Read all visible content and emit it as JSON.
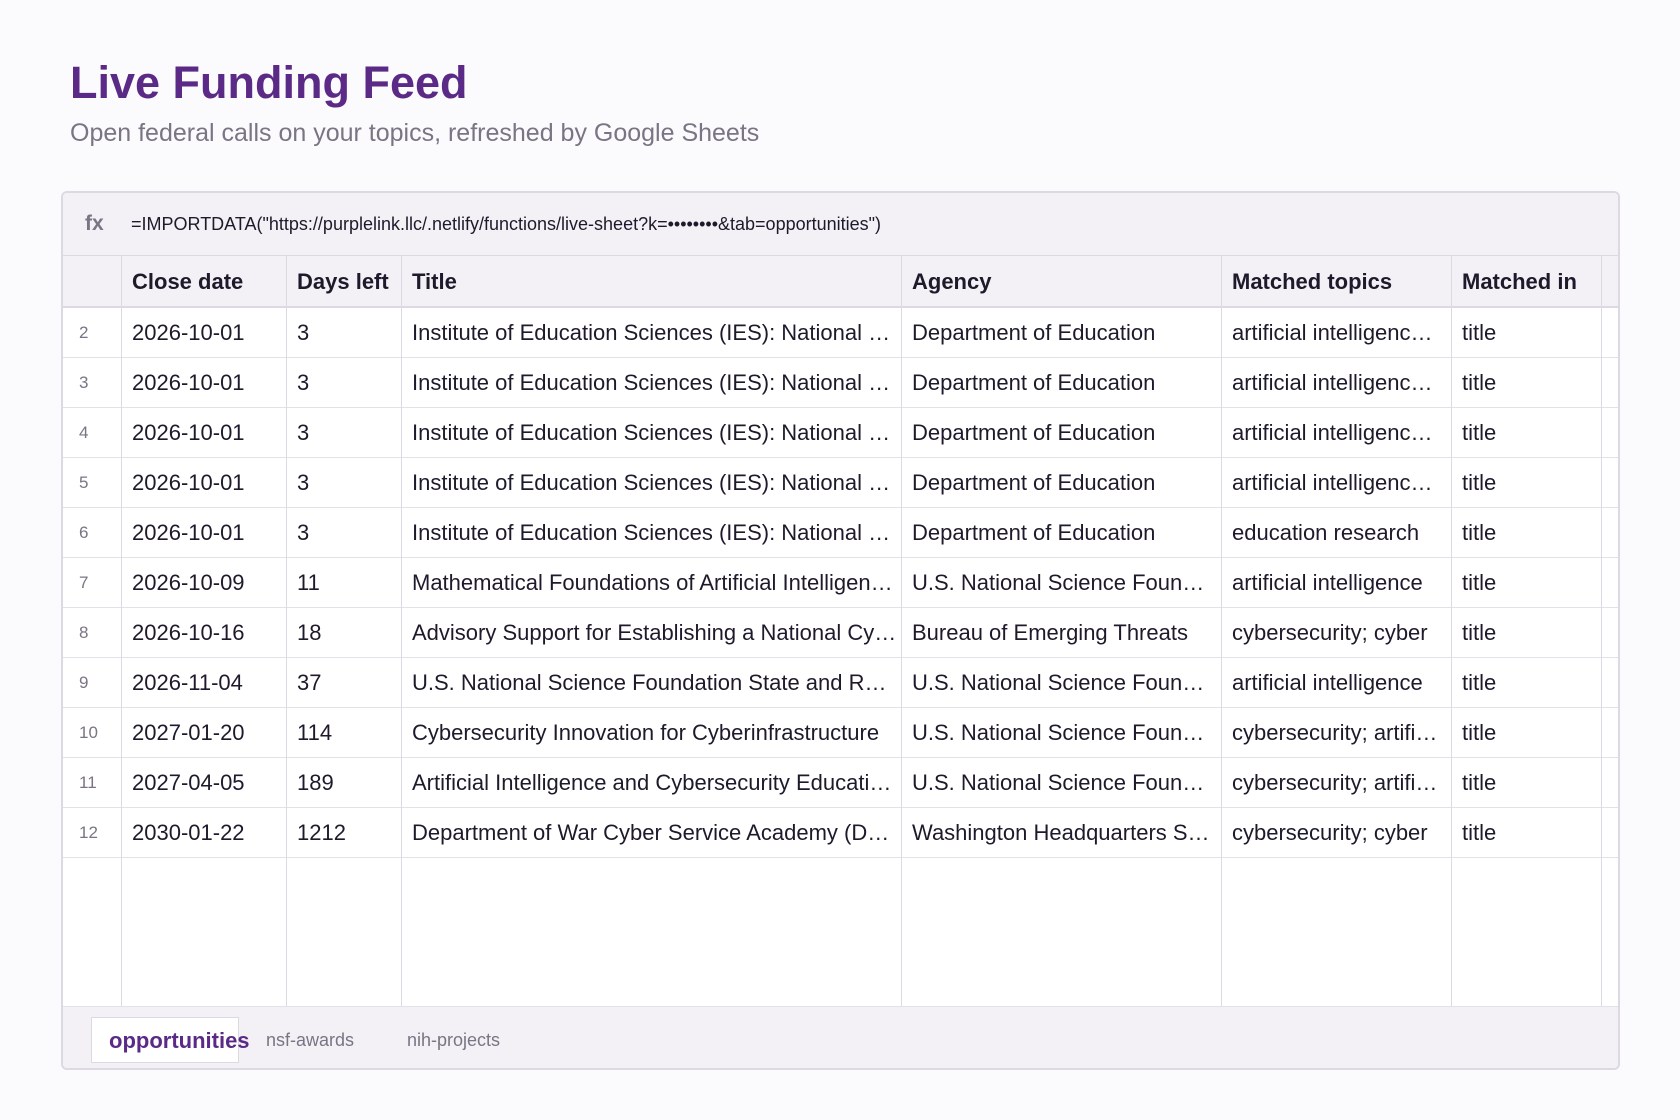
{
  "header": {
    "title": "Live Funding Feed",
    "subtitle": "Open federal calls on your topics, refreshed by Google Sheets"
  },
  "formula_bar": {
    "fx_label": "fx",
    "formula": "=IMPORTDATA(\"https://purplelink.llc/.netlify/functions/live-sheet?k=••••••••&tab=opportunities\")"
  },
  "table": {
    "columns": [
      "Close date",
      "Days left",
      "Title",
      "Agency",
      "Matched topics",
      "Matched in"
    ],
    "rows": [
      {
        "num": "2",
        "close_date": "2026-10-01",
        "days_left": "3",
        "title": "Institute of Education Sciences (IES): National …",
        "agency": "Department of Education",
        "topics": "artificial intelligenc…",
        "matched_in": "title"
      },
      {
        "num": "3",
        "close_date": "2026-10-01",
        "days_left": "3",
        "title": "Institute of Education Sciences (IES): National …",
        "agency": "Department of Education",
        "topics": "artificial intelligenc…",
        "matched_in": "title"
      },
      {
        "num": "4",
        "close_date": "2026-10-01",
        "days_left": "3",
        "title": "Institute of Education Sciences (IES): National …",
        "agency": "Department of Education",
        "topics": "artificial intelligenc…",
        "matched_in": "title"
      },
      {
        "num": "5",
        "close_date": "2026-10-01",
        "days_left": "3",
        "title": "Institute of Education Sciences (IES): National …",
        "agency": "Department of Education",
        "topics": "artificial intelligenc…",
        "matched_in": "title"
      },
      {
        "num": "6",
        "close_date": "2026-10-01",
        "days_left": "3",
        "title": "Institute of Education Sciences (IES): National …",
        "agency": "Department of Education",
        "topics": "education research",
        "matched_in": "title"
      },
      {
        "num": "7",
        "close_date": "2026-10-09",
        "days_left": "11",
        "title": "Mathematical Foundations of Artificial Intelligen…",
        "agency": "U.S. National Science Foun…",
        "topics": "artificial intelligence",
        "matched_in": "title"
      },
      {
        "num": "8",
        "close_date": "2026-10-16",
        "days_left": "18",
        "title": "Advisory Support for Establishing a National Cy…",
        "agency": "Bureau of Emerging Threats",
        "topics": "cybersecurity; cyber",
        "matched_in": "title"
      },
      {
        "num": "9",
        "close_date": "2026-11-04",
        "days_left": "37",
        "title": "U.S. National Science Foundation State and R…",
        "agency": "U.S. National Science Foun…",
        "topics": "artificial intelligence",
        "matched_in": "title"
      },
      {
        "num": "10",
        "close_date": "2027-01-20",
        "days_left": "114",
        "title": "Cybersecurity Innovation for Cyberinfrastructure",
        "agency": "U.S. National Science Foun…",
        "topics": "cybersecurity; artifi…",
        "matched_in": "title"
      },
      {
        "num": "11",
        "close_date": "2027-04-05",
        "days_left": "189",
        "title": "Artificial Intelligence and Cybersecurity Educati…",
        "agency": "U.S. National Science Foun…",
        "topics": "cybersecurity; artifi…",
        "matched_in": "title"
      },
      {
        "num": "12",
        "close_date": "2030-01-22",
        "days_left": "1212",
        "title": "Department of War Cyber Service Academy (D…",
        "agency": "Washington Headquarters S…",
        "topics": "cybersecurity; cyber",
        "matched_in": "title"
      }
    ]
  },
  "tabs": [
    {
      "label": "opportunities",
      "active": true
    },
    {
      "label": "nsf-awards",
      "active": false
    },
    {
      "label": "nih-projects",
      "active": false
    }
  ],
  "colors": {
    "accent": "#5b2a86",
    "muted_text": "#7a7484",
    "grid_line": "#dcd9e3",
    "header_bg": "#f3f1f6"
  }
}
